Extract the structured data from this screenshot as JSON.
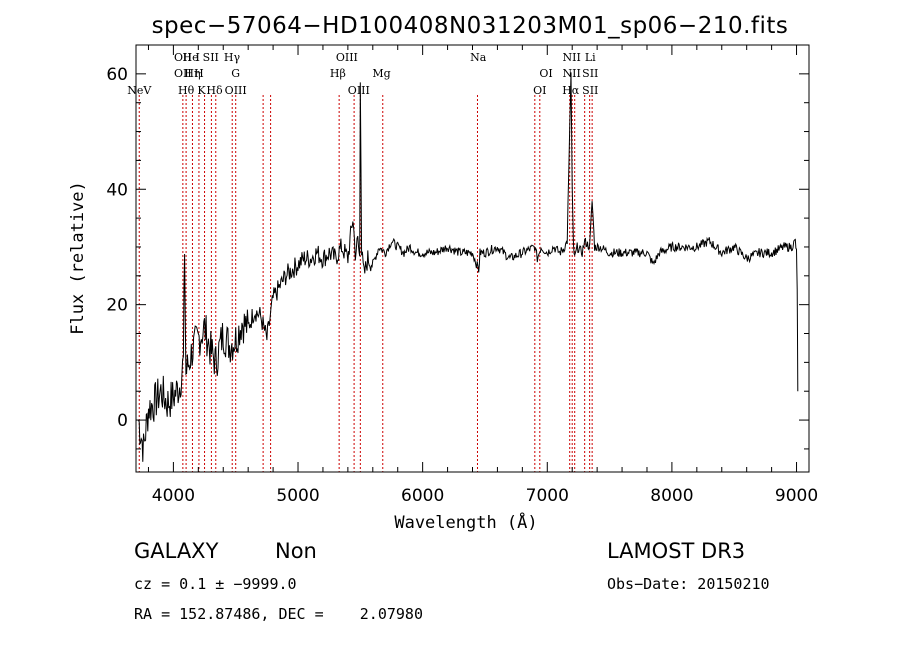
{
  "chart_data": {
    "type": "line",
    "title": "spec−57064−HD100408N031203M01_sp06−210.fits",
    "xlabel": "Wavelength (Å)",
    "ylabel": "Flux (relative)",
    "xlim": [
      3700,
      9100
    ],
    "ylim": [
      -9,
      65
    ],
    "x_ticks": [
      4000,
      5000,
      6000,
      7000,
      8000,
      9000
    ],
    "x_tick_labels": [
      "4000",
      "5000",
      "6000",
      "7000",
      "8000",
      "9000"
    ],
    "y_ticks": [
      0,
      20,
      40,
      60
    ],
    "y_tick_labels": [
      "0",
      "20",
      "40",
      "60"
    ],
    "series": [
      {
        "name": "flux",
        "x": [
          3720,
          3760,
          3800,
          3850,
          3900,
          3950,
          4000,
          4050,
          4080,
          4090,
          4100,
          4150,
          4200,
          4250,
          4300,
          4340,
          4400,
          4450,
          4500,
          4550,
          4600,
          4650,
          4700,
          4750,
          4800,
          4850,
          4900,
          4950,
          5000,
          5050,
          5100,
          5150,
          5200,
          5250,
          5300,
          5350,
          5400,
          5440,
          5460,
          5480,
          5495,
          5500,
          5510,
          5530,
          5560,
          5600,
          5650,
          5700,
          5750,
          5800,
          5850,
          5900,
          5950,
          6000,
          6100,
          6200,
          6300,
          6400,
          6450,
          6460,
          6500,
          6600,
          6700,
          6800,
          6900,
          6920,
          6950,
          7000,
          7050,
          7100,
          7140,
          7160,
          7180,
          7190,
          7200,
          7210,
          7220,
          7240,
          7280,
          7300,
          7340,
          7360,
          7380,
          7420,
          7500,
          7600,
          7700,
          7800,
          7850,
          7900,
          8000,
          8100,
          8200,
          8300,
          8400,
          8500,
          8600,
          8700,
          8800,
          8900,
          8960,
          8990,
          9000,
          9005,
          9010
        ],
        "y": [
          0,
          -5,
          2,
          3,
          5,
          3,
          4,
          6,
          10,
          30,
          8,
          12,
          14,
          16,
          12,
          10,
          15,
          13,
          14,
          17,
          16,
          19,
          18,
          14,
          21,
          23,
          25,
          26,
          27,
          28,
          28,
          29,
          28,
          29,
          28,
          30,
          28,
          35,
          29,
          31,
          28,
          60,
          29,
          25,
          28,
          27,
          30,
          29,
          31,
          30,
          29,
          30,
          29,
          29,
          29,
          30,
          29,
          29,
          26,
          29,
          29,
          30,
          28,
          29,
          30,
          28,
          30,
          29,
          30,
          29,
          30,
          31,
          50,
          60,
          40,
          30,
          28,
          30,
          29,
          31,
          30,
          38,
          30,
          30,
          29,
          29,
          29,
          29,
          27,
          29,
          30,
          30,
          30,
          31,
          29,
          30,
          28,
          29,
          29,
          30,
          30,
          31,
          29,
          23,
          5
        ]
      }
    ],
    "line_markers": [
      {
        "label": "NeV",
        "wavelength": 3726,
        "row": 3
      },
      {
        "label": "OII",
        "wavelength": 4076,
        "row": 1
      },
      {
        "label": "OII",
        "wavelength": 4076,
        "row": 2
      },
      {
        "label": "Hθ",
        "wavelength": 4102,
        "row": 3
      },
      {
        "label": "He",
        "wavelength": 4138,
        "row": 1
      },
      {
        "label": "Hη",
        "wavelength": 4153,
        "row": 2
      },
      {
        "label": "I",
        "wavelength": 4195,
        "row": 1
      },
      {
        "label": "H",
        "wavelength": 4205,
        "row": 2
      },
      {
        "label": "K",
        "wavelength": 4225,
        "row": 3
      },
      {
        "label": "SII",
        "wavelength": 4300,
        "row": 1
      },
      {
        "label": "Hδ",
        "wavelength": 4330,
        "row": 3
      },
      {
        "label": "Hγ",
        "wavelength": 4470,
        "row": 1
      },
      {
        "label": "G",
        "wavelength": 4500,
        "row": 2
      },
      {
        "label": "OIII",
        "wavelength": 4500,
        "row": 3
      },
      {
        "label": "OIII",
        "wavelength": 5392,
        "row": 1
      },
      {
        "label": "Hβ",
        "wavelength": 5320,
        "row": 2
      },
      {
        "label": "OIII",
        "wavelength": 5488,
        "row": 3
      },
      {
        "label": "Mg",
        "wavelength": 5670,
        "row": 2
      },
      {
        "label": "Na",
        "wavelength": 6446,
        "row": 1
      },
      {
        "label": "OI",
        "wavelength": 6990,
        "row": 2
      },
      {
        "label": "OI",
        "wavelength": 6940,
        "row": 3
      },
      {
        "label": "NII",
        "wavelength": 7196,
        "row": 1
      },
      {
        "label": "Li",
        "wavelength": 7345,
        "row": 1
      },
      {
        "label": "NII",
        "wavelength": 7196,
        "row": 2
      },
      {
        "label": "SII",
        "wavelength": 7345,
        "row": 2
      },
      {
        "label": "Hα",
        "wavelength": 7188,
        "row": 3
      },
      {
        "label": "SII",
        "wavelength": 7345,
        "row": 3
      }
    ],
    "line_positions": [
      3726,
      4076,
      4102,
      4153,
      4205,
      4250,
      4305,
      4340,
      4472,
      4500,
      4720,
      4780,
      5330,
      5450,
      5500,
      5680,
      6440,
      6900,
      6940,
      7180,
      7200,
      7220,
      7300,
      7340,
      7360
    ]
  },
  "info": {
    "object_class": "GALAXY",
    "subclass": "Non",
    "survey": "LAMOST DR3",
    "cz_line": "cz = 0.1 ± −9999.0",
    "obs_date": "Obs−Date: 20150210",
    "radec_line": "RA = 152.87486, DEC =    2.07980"
  },
  "colors": {
    "spectrum": "#000000",
    "marker_line": "#cc0000",
    "frame": "#000000"
  }
}
